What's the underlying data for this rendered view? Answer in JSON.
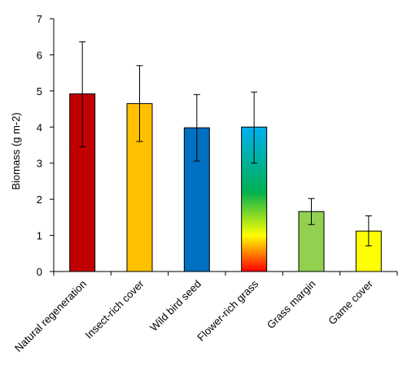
{
  "chart_data": {
    "type": "bar",
    "title": "",
    "xlabel": "",
    "ylabel": "Biomass (g m-2)",
    "ylim": [
      0,
      7
    ],
    "yticks": [
      0,
      1,
      2,
      3,
      4,
      5,
      6,
      7
    ],
    "grid": false,
    "legend": "none",
    "categories": [
      "Natural regeneration",
      "Insect-rich cover",
      "Wild bird seed",
      "Flower-rich grass",
      "Grass margin",
      "Game cover"
    ],
    "values": [
      4.92,
      4.65,
      3.98,
      4.0,
      1.66,
      1.12
    ],
    "error_upper": [
      6.36,
      5.7,
      4.9,
      4.97,
      2.02,
      1.54
    ],
    "error_lower": [
      3.45,
      3.6,
      3.06,
      3.0,
      1.3,
      0.71
    ],
    "colors": [
      "#C00000",
      "#FFC000",
      "#0070C0",
      "gradient",
      "#92D050",
      "#FFFF00"
    ],
    "gradient_stops": [
      "#FF0000",
      "#FFFF00",
      "#00B050",
      "#00B0F0"
    ]
  }
}
